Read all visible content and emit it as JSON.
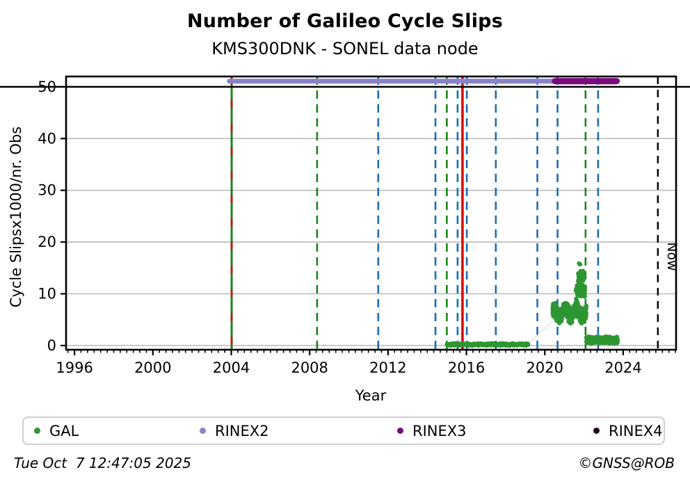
{
  "title": "Number of Galileo Cycle Slips",
  "subtitle": "KMS300DNK - SONEL data node",
  "footer": {
    "timestamp": "Tue Oct  7 12:47:05 2025",
    "copyright": "©GNSS@ROB"
  },
  "legend": {
    "items": [
      {
        "label": "GAL",
        "color": "#2e9632"
      },
      {
        "label": "RINEX2",
        "color": "#8983c6"
      },
      {
        "label": "RINEX3",
        "color": "#7a0a7d"
      },
      {
        "label": "RINEX4",
        "color": "#24051f"
      }
    ]
  },
  "chart_data": {
    "type": "scatter",
    "title": "Number of Galileo Cycle Slips",
    "subtitle": "KMS300DNK - SONEL data node",
    "xlabel": "Year",
    "ylabel": "Cycle Slipsx1000/nr. Obs",
    "xlim": [
      1995.57,
      2026.7
    ],
    "ylim": [
      -0.81,
      52.0
    ],
    "x_major_ticks": [
      1996,
      2000,
      2004,
      2008,
      2012,
      2016,
      2020,
      2024
    ],
    "x_minor_step_years": 0.3333,
    "y_ticks": [
      0,
      10,
      20,
      30,
      40,
      50
    ],
    "grid": "horizontal gray lines at y ticks",
    "reference_line_y": 50,
    "legend_position": "bottom",
    "now_line": {
      "year": 2025.77,
      "label": "Now",
      "color": "#000000",
      "style": "dashed"
    },
    "bars": [
      {
        "name": "RINEX2",
        "start": 2003.9,
        "end": 2020.6,
        "value": 51.1,
        "color": "#8983c6",
        "thickness": 7
      },
      {
        "name": "RINEX3",
        "start": 2020.52,
        "end": 2023.67,
        "value": 51.1,
        "color": "#7a0a7d",
        "thickness": 9
      }
    ],
    "event_lines": [
      {
        "year": 2004.02,
        "color": "#178717",
        "style": "solid",
        "width": 3.0
      },
      {
        "year": 2004.02,
        "color": "#dd0000",
        "style": "dashed",
        "width": 2.6,
        "dash": "12 22"
      },
      {
        "year": 2008.38,
        "color": "#178717",
        "style": "dashed",
        "width": 2.6
      },
      {
        "year": 2011.5,
        "color": "#1b6cb8",
        "style": "dashed",
        "width": 2.6
      },
      {
        "year": 2014.42,
        "color": "#1b6cb8",
        "style": "dashed",
        "width": 2.6
      },
      {
        "year": 2015.0,
        "color": "#178717",
        "style": "dashed",
        "width": 2.6
      },
      {
        "year": 2015.55,
        "color": "#1b6cb8",
        "style": "dashed",
        "width": 2.6
      },
      {
        "year": 2015.8,
        "color": "#dd0000",
        "style": "solid",
        "width": 3.5
      },
      {
        "year": 2016.02,
        "color": "#1b6cb8",
        "style": "dashed",
        "width": 2.6
      },
      {
        "year": 2017.5,
        "color": "#1b6cb8",
        "style": "dashed",
        "width": 2.6
      },
      {
        "year": 2019.62,
        "color": "#1b6cb8",
        "style": "dashed",
        "width": 2.6
      },
      {
        "year": 2020.65,
        "color": "#1b6cb8",
        "style": "dashed",
        "width": 2.6
      },
      {
        "year": 2022.08,
        "color": "#178717",
        "style": "dashed",
        "width": 2.6
      },
      {
        "year": 2022.72,
        "color": "#1b6cb8",
        "style": "dashed",
        "width": 2.6
      }
    ],
    "connector_lines": [
      {
        "x1": 2019.16,
        "y1": 0.25,
        "x2": 2020.42,
        "y2": 4.9,
        "color": "#dcdcdc",
        "width": 1.2
      }
    ],
    "series": [
      {
        "name": "GAL",
        "color": "#2e9632",
        "marker_radius": 3.1,
        "clusters": [
          {
            "x_start": 2015.0,
            "x_end": 2019.16,
            "y_center": 0.2,
            "y_jitter": 0.25,
            "n": 320
          },
          {
            "x_start": 2020.4,
            "x_end": 2022.12,
            "y_center": 6.4,
            "y_jitter": 1.7,
            "n": 560,
            "wave": {
              "amp": 0.8,
              "k": 18,
              "p": 1.2
            }
          },
          {
            "x_start": 2021.58,
            "x_end": 2022.06,
            "y_center": 10.6,
            "y_jitter": 1.6,
            "n": 70
          },
          {
            "x_start": 2021.7,
            "x_end": 2021.98,
            "y_center": 13.5,
            "y_jitter": 1.1,
            "n": 60
          },
          {
            "x_start": 2021.74,
            "x_end": 2021.82,
            "y_center": 15.6,
            "y_jitter": 0.35,
            "n": 3
          },
          {
            "x_start": 2022.12,
            "x_end": 2023.72,
            "y_center": 1.05,
            "y_jitter": 0.75,
            "n": 340
          }
        ]
      }
    ],
    "plot_colors": {
      "grid": "#b3b3b3",
      "axis": "#000000"
    }
  }
}
